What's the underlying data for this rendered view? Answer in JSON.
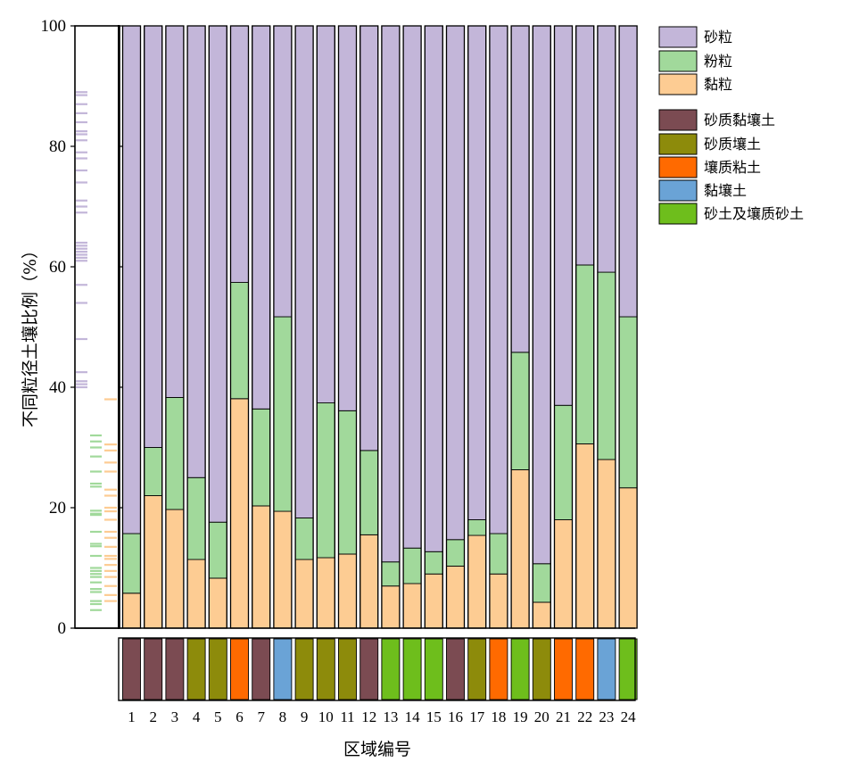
{
  "chart_data": {
    "type": "bar",
    "stacked": true,
    "title": "",
    "xlabel": "区域编号",
    "ylabel": "不同粒径土壤比例（%）",
    "ylim": [
      0,
      100
    ],
    "yticks": [
      0,
      20,
      40,
      60,
      80,
      100
    ],
    "categories": [
      "1",
      "2",
      "3",
      "4",
      "5",
      "6",
      "7",
      "8",
      "9",
      "10",
      "11",
      "12",
      "13",
      "14",
      "15",
      "16",
      "17",
      "18",
      "19",
      "20",
      "21",
      "22",
      "23",
      "24"
    ],
    "series": [
      {
        "name": "黏粒",
        "color": "#FDCC93",
        "values": [
          5.8,
          22.0,
          19.7,
          11.4,
          8.3,
          38.1,
          20.3,
          19.4,
          11.4,
          11.7,
          12.3,
          15.5,
          7.0,
          7.4,
          9.0,
          10.3,
          15.4,
          9.0,
          26.3,
          4.3,
          18.0,
          30.6,
          28.0,
          23.3
        ]
      },
      {
        "name": "粉粒",
        "color": "#A1D99B",
        "values": [
          9.9,
          8.0,
          18.6,
          13.6,
          9.3,
          19.3,
          16.1,
          32.3,
          6.9,
          25.7,
          23.8,
          14.0,
          4.0,
          5.9,
          3.7,
          4.4,
          2.6,
          6.7,
          19.5,
          6.4,
          19.0,
          29.7,
          31.1,
          28.4
        ]
      },
      {
        "name": "砂粒",
        "color": "#C3B6D9",
        "values": [
          84.3,
          70.0,
          61.7,
          75.0,
          82.4,
          42.6,
          63.6,
          48.3,
          81.7,
          62.6,
          63.9,
          70.5,
          89.0,
          86.7,
          87.3,
          85.3,
          82.0,
          84.3,
          54.2,
          89.3,
          63.0,
          39.7,
          40.9,
          48.3
        ]
      }
    ],
    "soil_texture": [
      "砂质黏壤土",
      "砂质黏壤土",
      "砂质黏壤土",
      "砂质壤土",
      "砂质壤土",
      "壤质粘土",
      "砂质黏壤土",
      "黏壤土",
      "砂质壤土",
      "砂质壤土",
      "砂质壤土",
      "砂质黏壤土",
      "砂土及壤质砂土",
      "砂土及壤质砂土",
      "砂土及壤质砂土",
      "砂质黏壤土",
      "砂质壤土",
      "壤质粘土",
      "砂土及壤质砂土",
      "砂质壤土",
      "壤质粘土",
      "壤质粘土",
      "黏壤土",
      "砂土及壤质砂土"
    ],
    "legend_fractions": [
      {
        "name": "砂粒",
        "color": "#C3B6D9"
      },
      {
        "name": "粉粒",
        "color": "#A1D99B"
      },
      {
        "name": "黏粒",
        "color": "#FDCC93"
      }
    ],
    "legend_textures": [
      {
        "name": "砂质黏壤土",
        "color": "#7B4B52"
      },
      {
        "name": "砂质壤土",
        "color": "#8D8B0B"
      },
      {
        "name": "壤质粘土",
        "color": "#FF6A00"
      },
      {
        "name": "黏壤土",
        "color": "#6AA3D6"
      },
      {
        "name": "砂土及壤质砂土",
        "color": "#6EBE1C"
      }
    ],
    "rug": {
      "sand": [
        89,
        88.5,
        87,
        85.5,
        84,
        82.5,
        82,
        81,
        79,
        78,
        76,
        74,
        71,
        70,
        69,
        64,
        63.5,
        63,
        62.5,
        62,
        61.5,
        61,
        57,
        54,
        48,
        42.5,
        41,
        40.5,
        40
      ],
      "silt": [
        32,
        31,
        30,
        28.5,
        26,
        24,
        23.5,
        19.5,
        19,
        18.8,
        16,
        14,
        13.6,
        12,
        10,
        9.5,
        9.0,
        8.5,
        7.6,
        6.5,
        6.0,
        4.5,
        4.0,
        3.0
      ],
      "clay": [
        38,
        30.5,
        29.5,
        27.5,
        26,
        23,
        22,
        20,
        19.4,
        18,
        16,
        15,
        13.5,
        12,
        11.5,
        10.5,
        9.5,
        8.5,
        7,
        5.5,
        4.5
      ]
    }
  }
}
